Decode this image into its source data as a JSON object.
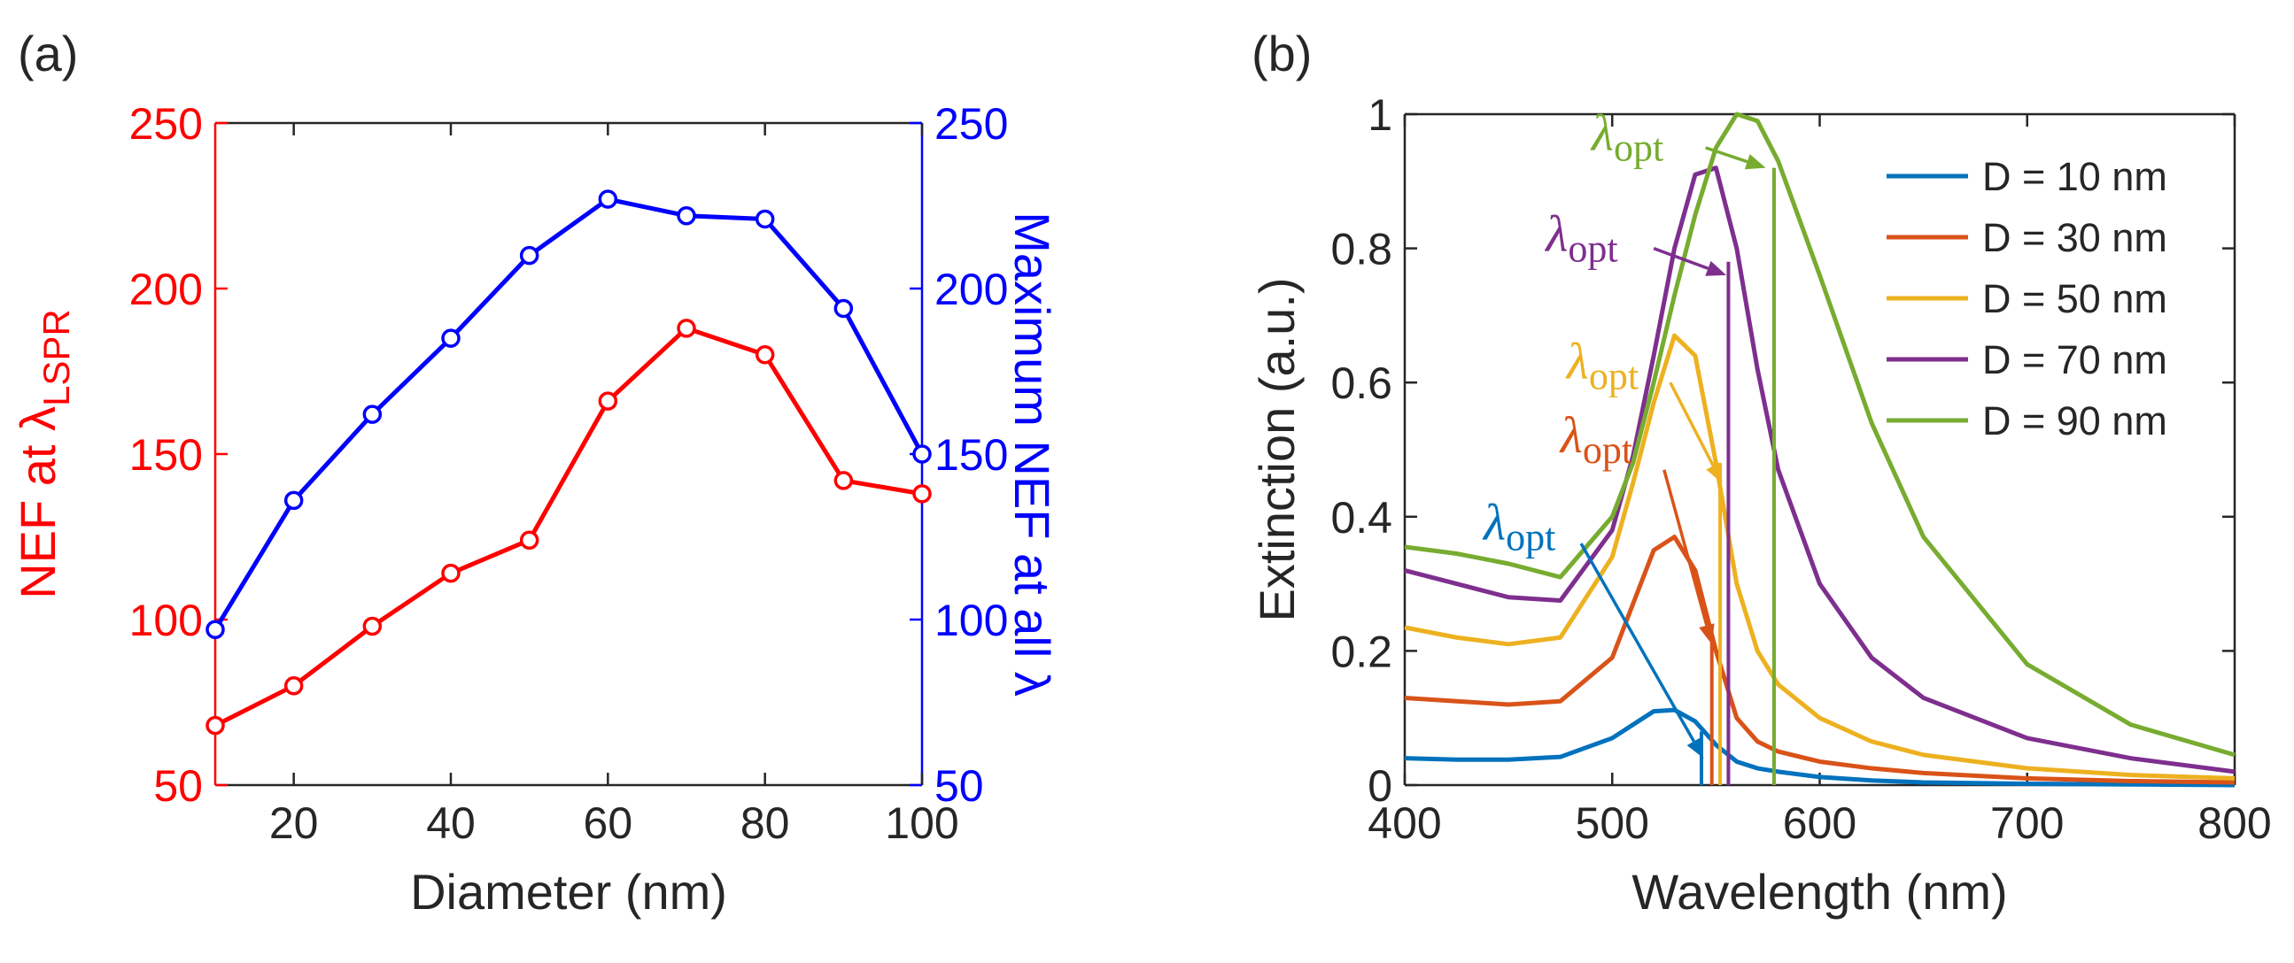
{
  "chart_data": [
    {
      "type": "line",
      "panel": "(a)",
      "x": [
        10,
        20,
        30,
        40,
        50,
        60,
        70,
        80,
        90,
        100
      ],
      "xlim": [
        10,
        100
      ],
      "xticks": [
        20,
        40,
        60,
        80,
        100
      ],
      "ylim": [
        50,
        250
      ],
      "yticks": [
        50,
        100,
        150,
        200,
        250
      ],
      "y2lim": [
        50,
        250
      ],
      "y2ticks": [
        50,
        100,
        150,
        200,
        250
      ],
      "xlabel": "Diameter (nm)",
      "ylabel": "NEF at λ",
      "ylabel_sub": "LSPR",
      "ycolor": "#ff0000",
      "y2label": "Maximum NEF at all λ",
      "y2color": "#0000ff",
      "series": [
        {
          "color": "#ff0000",
          "axis": "y",
          "marker": "o",
          "values": [
            68,
            80,
            98,
            114,
            124,
            166,
            188,
            180,
            142,
            138
          ]
        },
        {
          "color": "#0000ff",
          "axis": "y2",
          "marker": "o",
          "values": [
            97,
            136,
            162,
            185,
            210,
            227,
            222,
            221,
            194,
            150
          ]
        }
      ]
    },
    {
      "type": "spectra",
      "panel": "(b)",
      "x": [
        400,
        425,
        450,
        475,
        500,
        510,
        520,
        530,
        540,
        550,
        560,
        570,
        580,
        600,
        625,
        650,
        700,
        750,
        800
      ],
      "xlim": [
        400,
        800
      ],
      "xticks": [
        400,
        500,
        600,
        700,
        800
      ],
      "ylim": [
        0,
        1
      ],
      "yticks": [
        0,
        0.2,
        0.4,
        0.6,
        0.8,
        1
      ],
      "xlabel": "Wavelength (nm)",
      "ylabel": "Extinction (a.u.)",
      "legend": "top-right",
      "series": [
        {
          "name": "D = 10 nm",
          "color": "#0072bd",
          "values": [
            0.04,
            0.038,
            0.038,
            0.042,
            0.07,
            0.09,
            0.11,
            0.112,
            0.095,
            0.06,
            0.035,
            0.025,
            0.02,
            0.012,
            0.007,
            0.004,
            0.002,
            0.001,
            0
          ],
          "opt_x": 543,
          "opt_y": 0.08
        },
        {
          "name": "D = 30 nm",
          "color": "#d95319",
          "values": [
            0.13,
            0.125,
            0.12,
            0.125,
            0.19,
            0.27,
            0.35,
            0.37,
            0.32,
            0.2,
            0.1,
            0.065,
            0.05,
            0.035,
            0.025,
            0.018,
            0.01,
            0.006,
            0.004
          ],
          "opt_x": 548,
          "opt_y": 0.23
        },
        {
          "name": "D = 50 nm",
          "color": "#edb120",
          "values": [
            0.235,
            0.22,
            0.21,
            0.22,
            0.34,
            0.45,
            0.57,
            0.67,
            0.64,
            0.48,
            0.3,
            0.2,
            0.15,
            0.1,
            0.065,
            0.045,
            0.025,
            0.015,
            0.01
          ],
          "opt_x": 552,
          "opt_y": 0.48
        },
        {
          "name": "D = 70 nm",
          "color": "#7e2f8e",
          "values": [
            0.32,
            0.3,
            0.28,
            0.275,
            0.38,
            0.49,
            0.64,
            0.8,
            0.91,
            0.92,
            0.8,
            0.62,
            0.47,
            0.3,
            0.19,
            0.13,
            0.07,
            0.04,
            0.02
          ],
          "opt_x": 556,
          "opt_y": 0.78
        },
        {
          "name": "D = 90 nm",
          "color": "#77ac30",
          "values": [
            0.355,
            0.345,
            0.33,
            0.31,
            0.4,
            0.48,
            0.6,
            0.73,
            0.85,
            0.95,
            1.0,
            0.99,
            0.93,
            0.76,
            0.54,
            0.37,
            0.18,
            0.09,
            0.045
          ],
          "opt_x": 578,
          "opt_y": 0.92
        }
      ],
      "annotations": [
        {
          "text": "λ",
          "subscript": "opt",
          "color": "#0072bd",
          "x": 438,
          "y": 0.39,
          "arrow": [
            485,
            0.36,
            544,
            0.04
          ]
        },
        {
          "text": "λ",
          "subscript": "opt",
          "color": "#d95319",
          "x": 475,
          "y": 0.52,
          "arrow": [
            525,
            0.47,
            548,
            0.21
          ]
        },
        {
          "text": "λ",
          "subscript": "opt",
          "color": "#edb120",
          "x": 478,
          "y": 0.63,
          "arrow": [
            528,
            0.6,
            553,
            0.45
          ]
        },
        {
          "text": "λ",
          "subscript": "opt",
          "color": "#7e2f8e",
          "x": 468,
          "y": 0.82,
          "arrow": [
            520,
            0.8,
            555,
            0.76
          ]
        },
        {
          "text": "λ",
          "subscript": "opt",
          "color": "#77ac30",
          "x": 490,
          "y": 0.97,
          "arrow": [
            545,
            0.95,
            574,
            0.92
          ]
        }
      ]
    }
  ]
}
